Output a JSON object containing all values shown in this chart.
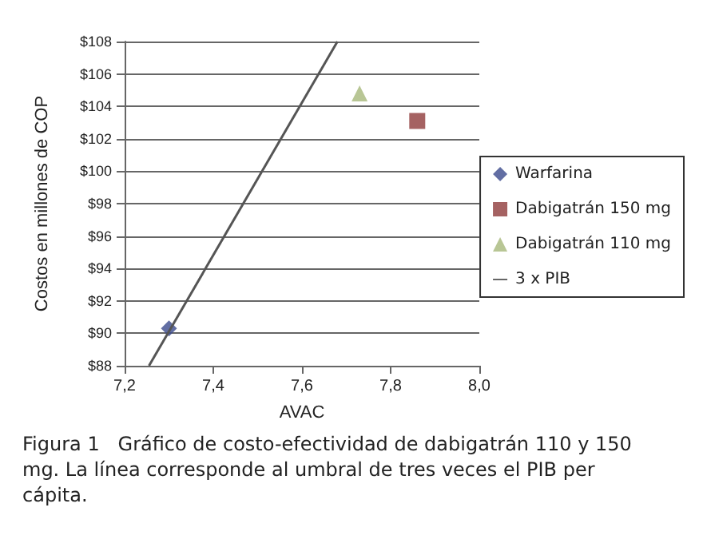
{
  "chart_data": {
    "type": "scatter",
    "xlabel": "AVAC",
    "ylabel": "Costos en millones de COP",
    "xlim": [
      7.2,
      8.0
    ],
    "xticks": [
      {
        "value": 7.2,
        "label": "7,2"
      },
      {
        "value": 7.4,
        "label": "7,4"
      },
      {
        "value": 7.6,
        "label": "7,6"
      },
      {
        "value": 7.8,
        "label": "7,8"
      },
      {
        "value": 8.0,
        "label": "8,0"
      }
    ],
    "ylim": [
      88,
      108
    ],
    "yticks": [
      {
        "value": 88,
        "label": "$88"
      },
      {
        "value": 90,
        "label": "$90"
      },
      {
        "value": 92,
        "label": "$92"
      },
      {
        "value": 94,
        "label": "$94"
      },
      {
        "value": 96,
        "label": "$96"
      },
      {
        "value": 98,
        "label": "$98"
      },
      {
        "value": 100,
        "label": "$100"
      },
      {
        "value": 102,
        "label": "$102"
      },
      {
        "value": 104,
        "label": "$104"
      },
      {
        "value": 106,
        "label": "$106"
      },
      {
        "value": 108,
        "label": "$108"
      }
    ],
    "series": [
      {
        "name": "Warfarina",
        "color": "#3b4a8c",
        "marker": "diamond",
        "x": [
          7.3
        ],
        "values": [
          90.3
        ]
      },
      {
        "name": "Dabigatrán 150 mg",
        "color": "#8e3b3b",
        "marker": "square",
        "x": [
          7.86
        ],
        "values": [
          103.1
        ]
      },
      {
        "name": "Dabigatrán 110 mg",
        "color": "#a6b87a",
        "marker": "triangle",
        "x": [
          7.73
        ],
        "values": [
          104.8
        ]
      },
      {
        "name": "3 x PIB",
        "type": "line",
        "color": "#555555",
        "marker": "none",
        "x": [
          7.255,
          7.68
        ],
        "values": [
          88,
          108
        ]
      }
    ],
    "grid": "y",
    "legend": "right",
    "annotations": [
      "Figura 1   Gráfico de costo-efectividad de dabigatrán 110 y 150 mg. La línea corresponde al umbral de tres veces el PIB per cápita."
    ]
  }
}
